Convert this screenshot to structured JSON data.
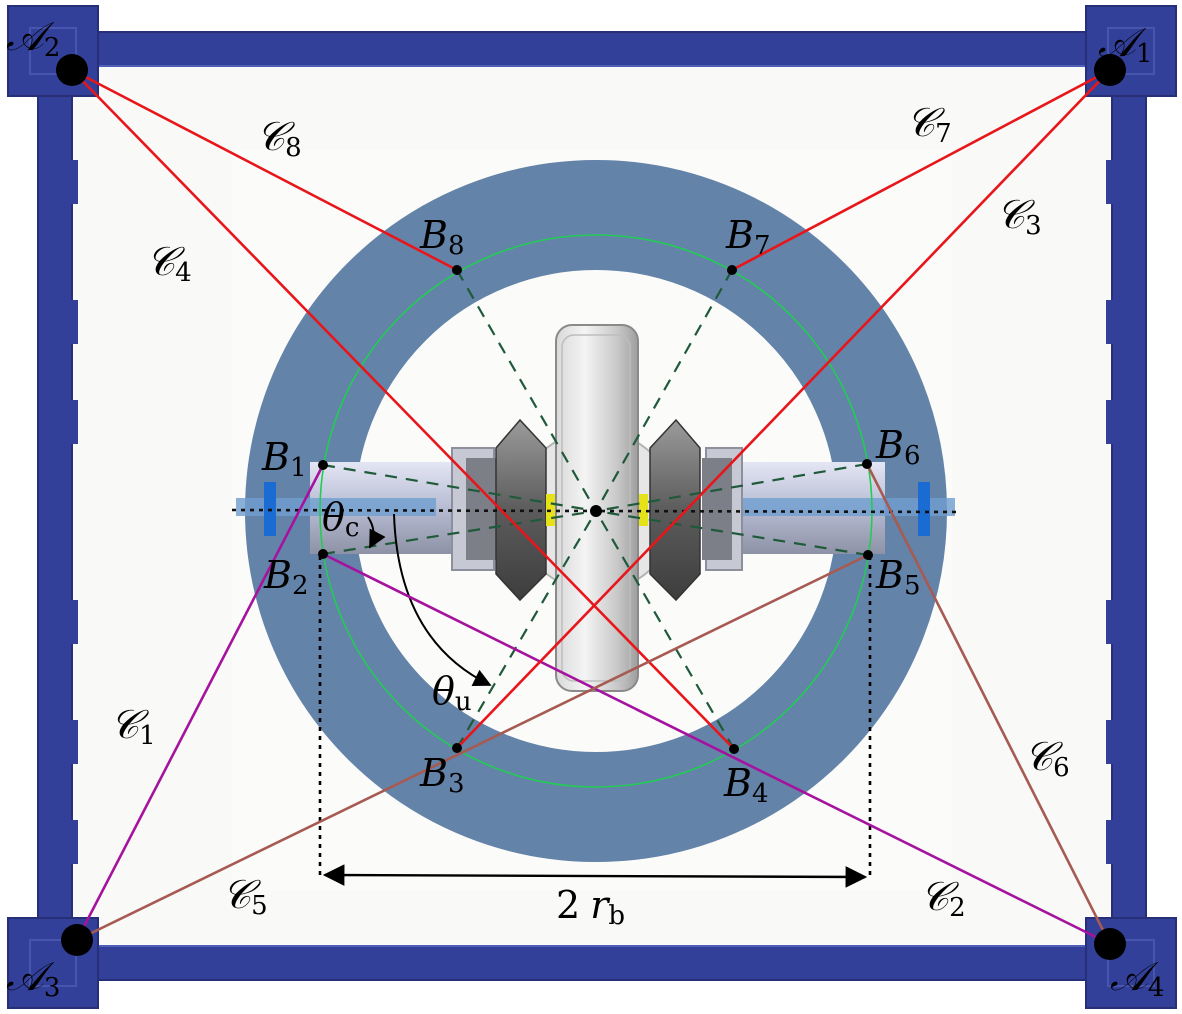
{
  "colors": {
    "frame": "#33409a",
    "frame_edge": "#262f78",
    "ring": "#6483a8",
    "inner_circle": "#22cc55",
    "cable_red": "#e8161b",
    "cable_magenta": "#a5139e",
    "cable_brown": "#a65a52",
    "dashed": "#1f5a3a",
    "anchor": "#000000"
  },
  "anchors": [
    {
      "base": "𝒜",
      "sub": "1"
    },
    {
      "base": "𝒜",
      "sub": "2"
    },
    {
      "base": "𝒜",
      "sub": "3"
    },
    {
      "base": "𝒜",
      "sub": "4"
    }
  ],
  "points": [
    {
      "base": "B",
      "sub": "1"
    },
    {
      "base": "B",
      "sub": "2"
    },
    {
      "base": "B",
      "sub": "3"
    },
    {
      "base": "B",
      "sub": "4"
    },
    {
      "base": "B",
      "sub": "5"
    },
    {
      "base": "B",
      "sub": "6"
    },
    {
      "base": "B",
      "sub": "7"
    },
    {
      "base": "B",
      "sub": "8"
    }
  ],
  "cables": [
    {
      "base": "𝒞",
      "sub": "1"
    },
    {
      "base": "𝒞",
      "sub": "2"
    },
    {
      "base": "𝒞",
      "sub": "3"
    },
    {
      "base": "𝒞",
      "sub": "4"
    },
    {
      "base": "𝒞",
      "sub": "5"
    },
    {
      "base": "𝒞",
      "sub": "6"
    },
    {
      "base": "𝒞",
      "sub": "7"
    },
    {
      "base": "𝒞",
      "sub": "8"
    }
  ],
  "angles": [
    {
      "base": "θ",
      "sub": "c"
    },
    {
      "base": "θ",
      "sub": "u"
    }
  ],
  "dimension": {
    "coef": "2",
    "base": "r",
    "sub": "b"
  }
}
